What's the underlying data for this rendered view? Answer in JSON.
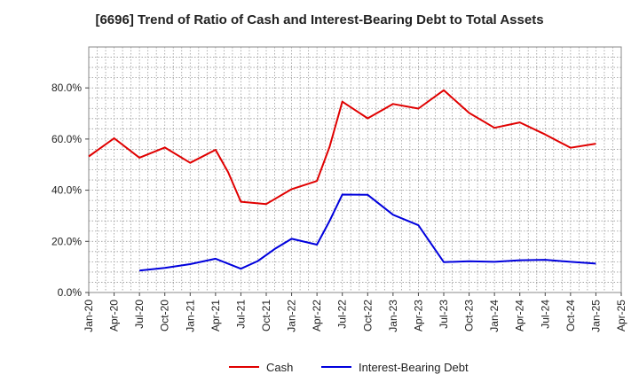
{
  "chart_data": {
    "type": "line",
    "title": "[6696]  Trend of Ratio of Cash and Interest-Bearing Debt to Total Assets",
    "xlabel": "",
    "ylabel": "",
    "ylim": [
      0,
      96
    ],
    "yticks": [
      0,
      20,
      40,
      60,
      80
    ],
    "ytick_labels": [
      "0.0%",
      "20.0%",
      "40.0%",
      "60.0%",
      "80.0%"
    ],
    "xticks": [
      0,
      3,
      6,
      9,
      12,
      15,
      18,
      21,
      24,
      27,
      30,
      33,
      36,
      39,
      42,
      45,
      48,
      51,
      54,
      57,
      60,
      63
    ],
    "xtick_labels": [
      "Jan-20",
      "Apr-20",
      "Jul-20",
      "Oct-20",
      "Jan-21",
      "Apr-21",
      "Jul-21",
      "Oct-21",
      "Jan-22",
      "Apr-22",
      "Jul-22",
      "Oct-22",
      "Jan-23",
      "Apr-23",
      "Jul-23",
      "Oct-23",
      "Jan-24",
      "Apr-24",
      "Jul-24",
      "Oct-24",
      "Jan-25",
      "Apr-25"
    ],
    "xlim": [
      0,
      63
    ],
    "grid": true,
    "legend_position": "bottom",
    "series": [
      {
        "name": "Cash",
        "color": "#e00000",
        "points": [
          [
            0,
            53.2
          ],
          [
            3,
            60.3
          ],
          [
            6,
            52.7
          ],
          [
            9,
            56.7
          ],
          [
            12,
            50.7
          ],
          [
            15,
            55.8
          ],
          [
            16.5,
            47
          ],
          [
            18,
            35.5
          ],
          [
            21,
            34.6
          ],
          [
            24,
            40.4
          ],
          [
            27,
            43.6
          ],
          [
            28.5,
            57
          ],
          [
            30,
            74.6
          ],
          [
            33,
            68.1
          ],
          [
            36,
            73.7
          ],
          [
            39,
            71.9
          ],
          [
            42,
            79.1
          ],
          [
            45,
            70.2
          ],
          [
            48,
            64.4
          ],
          [
            51,
            66.5
          ],
          [
            54,
            61.8
          ],
          [
            57,
            56.6
          ],
          [
            60,
            58.2
          ]
        ]
      },
      {
        "name": "Interest-Bearing Debt",
        "color": "#0000dd",
        "points": [
          [
            6,
            8.6
          ],
          [
            9,
            9.6
          ],
          [
            12,
            11.1
          ],
          [
            15,
            13.2
          ],
          [
            18,
            9.3
          ],
          [
            20,
            12.3
          ],
          [
            22,
            17
          ],
          [
            24,
            21
          ],
          [
            27,
            18.7
          ],
          [
            28.5,
            28
          ],
          [
            30,
            38.3
          ],
          [
            33,
            38.2
          ],
          [
            36,
            30.4
          ],
          [
            39,
            26.3
          ],
          [
            42,
            11.9
          ],
          [
            45,
            12.2
          ],
          [
            48,
            12
          ],
          [
            51,
            12.6
          ],
          [
            54,
            12.8
          ],
          [
            57,
            12
          ],
          [
            60,
            11.3
          ]
        ]
      }
    ]
  }
}
